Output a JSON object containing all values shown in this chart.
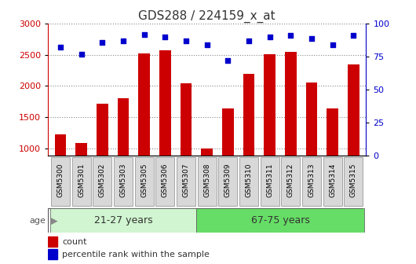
{
  "title": "GDS288 / 224159_x_at",
  "samples": [
    "GSM5300",
    "GSM5301",
    "GSM5302",
    "GSM5303",
    "GSM5305",
    "GSM5306",
    "GSM5307",
    "GSM5308",
    "GSM5309",
    "GSM5310",
    "GSM5311",
    "GSM5312",
    "GSM5313",
    "GSM5314",
    "GSM5315"
  ],
  "counts": [
    1230,
    1090,
    1710,
    1810,
    2520,
    2570,
    2040,
    1000,
    1640,
    2190,
    2510,
    2550,
    2060,
    1640,
    2350
  ],
  "percentiles": [
    82,
    77,
    86,
    87,
    92,
    90,
    87,
    84,
    72,
    87,
    90,
    91,
    89,
    84,
    91
  ],
  "groups": [
    {
      "label": "21-27 years",
      "start": 0,
      "end": 7,
      "color": "#d0f5d0"
    },
    {
      "label": "67-75 years",
      "start": 7,
      "end": 15,
      "color": "#66dd66"
    }
  ],
  "ylim_left": [
    880,
    3000
  ],
  "ylim_right": [
    0,
    100
  ],
  "yticks_left": [
    1000,
    1500,
    2000,
    2500,
    3000
  ],
  "yticks_right": [
    0,
    25,
    50,
    75,
    100
  ],
  "bar_color": "#cc0000",
  "dot_color": "#0000cc",
  "plot_bg": "#ffffff",
  "fig_bg": "#ffffff",
  "left_axis_color": "#cc0000",
  "right_axis_color": "#0000cc",
  "title_fontsize": 11,
  "legend_red_label": "count",
  "legend_blue_label": "percentile rank within the sample",
  "age_label": "age"
}
